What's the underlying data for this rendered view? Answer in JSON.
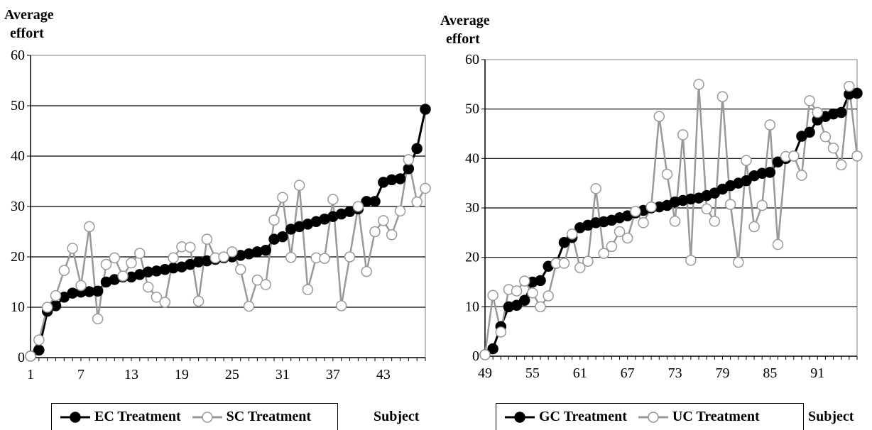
{
  "chart_data": [
    {
      "type": "line",
      "ylabel_line1": "Average",
      "ylabel_line2": "effort",
      "xlabel": "Subject",
      "ylim": [
        0,
        60
      ],
      "yticks": [
        "0",
        "10",
        "20",
        "30",
        "40",
        "50",
        "60"
      ],
      "xlim": [
        1,
        48
      ],
      "xticks": [
        1,
        7,
        13,
        19,
        25,
        31,
        37,
        43
      ],
      "x": [
        1,
        2,
        3,
        4,
        5,
        6,
        7,
        8,
        9,
        10,
        11,
        12,
        13,
        14,
        15,
        16,
        17,
        18,
        19,
        20,
        21,
        22,
        23,
        24,
        25,
        26,
        27,
        28,
        29,
        30,
        31,
        32,
        33,
        34,
        35,
        36,
        37,
        38,
        39,
        40,
        41,
        42,
        43,
        44,
        45,
        46,
        47,
        48
      ],
      "grid": true,
      "series": [
        {
          "name": "EC Treatment",
          "color": "#000000",
          "marker_fill": "#000000",
          "values": [
            0.3,
            1.5,
            9.2,
            10.3,
            12,
            12.8,
            13,
            13.1,
            13.2,
            15,
            15.5,
            16,
            16,
            16.5,
            17,
            17.2,
            17.5,
            17.8,
            18,
            18.5,
            19,
            19.2,
            19.5,
            19.8,
            20,
            20.3,
            20.6,
            21,
            21.3,
            23.5,
            24,
            25.5,
            26,
            26.5,
            27,
            27.5,
            28,
            28.5,
            29,
            29.5,
            31,
            31,
            34.8,
            35.3,
            35.5,
            37.5,
            41.5,
            49.3
          ]
        },
        {
          "name": "SC Treatment",
          "color": "#999999",
          "marker_fill": "#ffffff",
          "values": [
            0.3,
            3.5,
            10,
            12.3,
            17.3,
            21.7,
            14.3,
            26,
            7.7,
            18.5,
            19.8,
            16.2,
            18.8,
            20.7,
            14,
            12,
            11,
            19.8,
            22,
            21.9,
            11.2,
            23.5,
            19.8,
            20,
            21,
            17.5,
            10.2,
            15.4,
            14.5,
            27.3,
            31.8,
            19.9,
            34.2,
            13.5,
            19.8,
            19.7,
            31.4,
            10.3,
            20,
            30,
            17.1,
            25,
            27.2,
            24.4,
            29.1,
            39.3,
            30.9,
            33.6
          ]
        }
      ]
    },
    {
      "type": "line",
      "ylabel_line1": "Average",
      "ylabel_line2": "effort",
      "xlabel": "Subject",
      "ylim": [
        0,
        60
      ],
      "yticks": [
        "0",
        "10",
        "20",
        "30",
        "40",
        "50",
        "60"
      ],
      "xlim": [
        49,
        96
      ],
      "xticks": [
        49,
        55,
        61,
        67,
        73,
        79,
        85,
        91
      ],
      "x": [
        49,
        50,
        51,
        52,
        53,
        54,
        55,
        56,
        57,
        58,
        59,
        60,
        61,
        62,
        63,
        64,
        65,
        66,
        67,
        68,
        69,
        70,
        71,
        72,
        73,
        74,
        75,
        76,
        77,
        78,
        79,
        80,
        81,
        82,
        83,
        84,
        85,
        86,
        87,
        88,
        89,
        90,
        91,
        92,
        93,
        94,
        95,
        96
      ],
      "grid": true,
      "series": [
        {
          "name": "GC Treatment",
          "color": "#000000",
          "marker_fill": "#000000",
          "values": [
            0.3,
            1.5,
            6,
            10,
            10.3,
            11.3,
            15,
            15.3,
            18.2,
            18.8,
            23,
            24,
            26,
            26.5,
            27,
            27.2,
            27.5,
            28,
            28.4,
            29,
            29.5,
            30,
            30.2,
            30.5,
            31.2,
            31.5,
            31.8,
            32,
            32.5,
            33,
            33.8,
            34.5,
            35,
            35.5,
            36.5,
            37,
            37.2,
            39.3,
            40,
            40.5,
            44.5,
            45.3,
            47.8,
            48.5,
            49,
            49.3,
            53,
            53.2
          ]
        },
        {
          "name": "UC Treatment",
          "color": "#999999",
          "marker_fill": "#ffffff",
          "values": [
            0.3,
            12.3,
            4.9,
            13.5,
            13.2,
            15.2,
            12.8,
            10,
            12.2,
            18.8,
            18.8,
            24.7,
            17.9,
            19.2,
            33.9,
            20.8,
            22.2,
            25.2,
            23.9,
            29.3,
            27,
            30.2,
            48.5,
            36.8,
            27.3,
            44.8,
            19.4,
            55,
            29.8,
            27.3,
            52.5,
            30.7,
            19,
            39.6,
            26.2,
            30.5,
            46.8,
            22.6,
            40.4,
            40.5,
            36.6,
            51.7,
            49.3,
            44.4,
            42.1,
            38.7,
            54.6,
            40.5
          ]
        }
      ]
    }
  ]
}
